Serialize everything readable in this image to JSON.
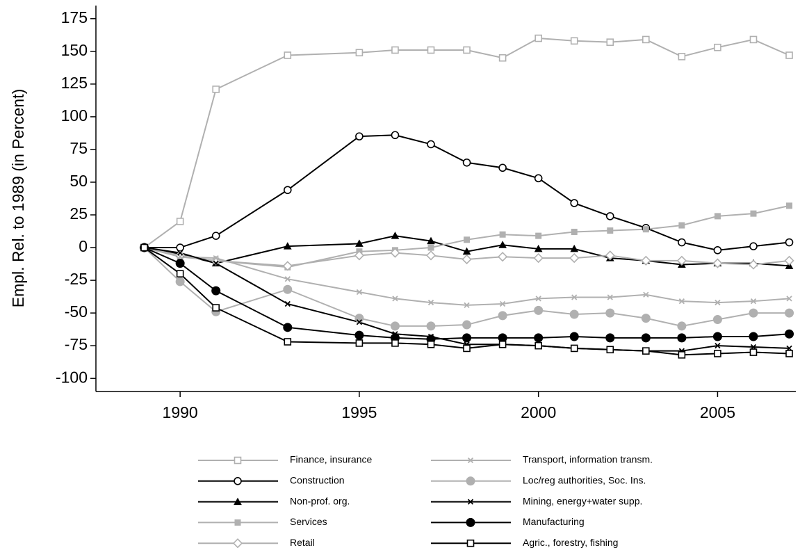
{
  "chart_data": {
    "type": "line",
    "y_label": "Empl. Rel. to 1989 (in Percent)",
    "x": [
      1989,
      1990,
      1991,
      1993,
      1995,
      1996,
      1997,
      1998,
      1999,
      2000,
      2001,
      2002,
      2003,
      2004,
      2005,
      2006,
      2007
    ],
    "xlim": [
      1987.65,
      2007.3
    ],
    "xticks": [
      1990,
      1995,
      2000,
      2005
    ],
    "ylim": [
      -110,
      185
    ],
    "yticks": [
      -100,
      -75,
      -50,
      -25,
      0,
      25,
      50,
      75,
      100,
      125,
      150,
      175
    ],
    "grid": false,
    "series": [
      {
        "name": "Finance, insurance",
        "color": "#b0b0b0",
        "marker": "square-open",
        "values": [
          0,
          20,
          121,
          147,
          149,
          151,
          151,
          151,
          145,
          160,
          158,
          157,
          159,
          146,
          153,
          159,
          147
        ]
      },
      {
        "name": "Construction",
        "color": "#000000",
        "marker": "circle-open",
        "values": [
          0,
          0,
          9,
          44,
          85,
          86,
          79,
          65,
          61,
          53,
          34,
          24,
          15,
          4,
          -2,
          1,
          4
        ]
      },
      {
        "name": "Non-prof. org.",
        "color": "#000000",
        "marker": "triangle",
        "values": [
          0,
          -5,
          -12,
          1,
          3,
          9,
          5,
          -3,
          2,
          -1,
          -1,
          -8,
          -10,
          -13,
          -12,
          -12,
          -14
        ]
      },
      {
        "name": "Services",
        "color": "#b0b0b0",
        "marker": "square",
        "values": [
          0,
          -7,
          -10,
          -15,
          -3,
          -2,
          0,
          6,
          10,
          9,
          12,
          13,
          14,
          17,
          24,
          26,
          32
        ]
      },
      {
        "name": "Retail",
        "color": "#b0b0b0",
        "marker": "diamond-open",
        "values": [
          0,
          -6,
          -10,
          -14,
          -6,
          -4,
          -6,
          -9,
          -7,
          -8,
          -8,
          -6,
          -10,
          -10,
          -12,
          -13,
          -10
        ]
      },
      {
        "name": "Transport, information transm.",
        "color": "#b0b0b0",
        "marker": "x",
        "values": [
          0,
          -7,
          -8,
          -24,
          -34,
          -39,
          -42,
          -44,
          -43,
          -39,
          -38,
          -38,
          -36,
          -41,
          -42,
          -41,
          -39
        ]
      },
      {
        "name": "Loc/reg authorities, Soc. Ins.",
        "color": "#b0b0b0",
        "marker": "circle",
        "values": [
          0,
          -26,
          -49,
          -32,
          -54,
          -60,
          -60,
          -59,
          -52,
          -48,
          -51,
          -50,
          -54,
          -60,
          -55,
          -50,
          -50
        ]
      },
      {
        "name": "Mining, energy+water supp.",
        "color": "#000000",
        "marker": "x",
        "values": [
          0,
          -4,
          -12,
          -43,
          -57,
          -66,
          -68,
          -74,
          -74,
          -75,
          -77,
          -78,
          -79,
          -79,
          -75,
          -76,
          -77
        ]
      },
      {
        "name": "Manufacturing",
        "color": "#000000",
        "marker": "circle",
        "values": [
          0,
          -12,
          -33,
          -61,
          -67,
          -69,
          -70,
          -69,
          -69,
          -69,
          -68,
          -69,
          -69,
          -69,
          -68,
          -68,
          -66
        ]
      },
      {
        "name": "Agric., forestry, fishing",
        "color": "#000000",
        "marker": "square-open",
        "values": [
          0,
          -20,
          -46,
          -72,
          -73,
          -73,
          -74,
          -77,
          -74,
          -75,
          -77,
          -78,
          -79,
          -82,
          -81,
          -80,
          -81
        ]
      }
    ]
  }
}
